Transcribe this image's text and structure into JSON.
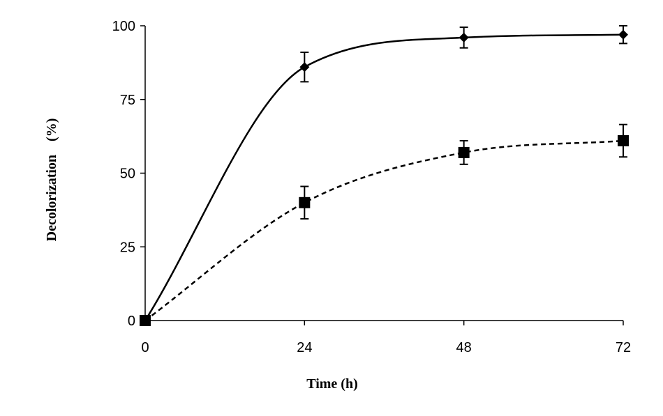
{
  "chart_data": {
    "type": "line",
    "title": "",
    "xlabel": "Time (h)",
    "ylabel": "Decolorization (%)",
    "xlim": [
      0,
      72
    ],
    "ylim": [
      0,
      100
    ],
    "x_ticks": [
      "0",
      "24",
      "48",
      "72"
    ],
    "y_ticks": [
      "0",
      "25",
      "50",
      "75",
      "100"
    ],
    "grid": false,
    "legend": "none",
    "series": [
      {
        "marker": "diamond",
        "line_style": "solid",
        "color": "#000000",
        "x": [
          0,
          24,
          48,
          72
        ],
        "y": [
          0,
          86,
          96,
          97
        ],
        "error": [
          0,
          5,
          3.5,
          3
        ]
      },
      {
        "marker": "square",
        "line_style": "dashed",
        "color": "#000000",
        "x": [
          0,
          24,
          48,
          72
        ],
        "y": [
          0,
          40,
          57,
          61
        ],
        "error": [
          0,
          5.5,
          4,
          5.5
        ]
      }
    ]
  }
}
